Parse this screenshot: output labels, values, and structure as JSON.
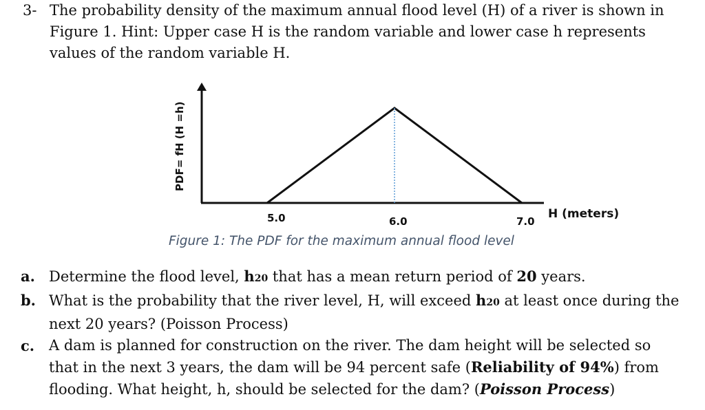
{
  "question": {
    "number": "3-",
    "intro_line1": "The probability density of the maximum annual flood level (H) of a river is shown in",
    "intro_line2": "Figure 1. Hint: Upper case H is the random variable and lower case h represents",
    "intro_line3": "values of the random variable H."
  },
  "figure": {
    "caption": "Figure 1: The PDF for the maximum annual flood level",
    "y_axis_label": "PDF= fH (H =h)",
    "x_axis_label": "H (meters)",
    "tick_labels": [
      "5.0",
      "6.0",
      "7.0"
    ]
  },
  "chart_data": {
    "type": "line",
    "title": "",
    "xlabel": "H (meters)",
    "ylabel": "PDF= fH (H =h)",
    "x": [
      5.0,
      6.0,
      7.0
    ],
    "y": [
      0,
      1,
      0
    ],
    "xticks": [
      "5.0",
      "6.0",
      "7.0"
    ],
    "shape": "triangular",
    "peak_marker_dotted": true
  },
  "parts": {
    "a": {
      "letter": "a.",
      "text1": "Determine the flood level, ",
      "h_main": "h",
      "h_sub": "20",
      "text2": " that has a mean return period of ",
      "num": "20",
      "text3": " years."
    },
    "b": {
      "letter": "b.",
      "text1": "What is the probability that the river level, H, will exceed ",
      "h_main": "h",
      "h_sub": "20",
      "text2": " at least once during the",
      "line2": "next 20 years? (Poisson Process)"
    },
    "c": {
      "letter": "c.",
      "line1": "A dam is planned for construction on the river. The dam height will be selected so",
      "line2_a": "that in the next 3 years, the dam will be 94 percent safe (",
      "line2_bold": "Reliability of 94%",
      "line2_b": ") from",
      "line3_a": "flooding. What height, h, should be selected for the dam? (",
      "line3_bi": "Poisson Process",
      "line3_b": ")"
    }
  }
}
